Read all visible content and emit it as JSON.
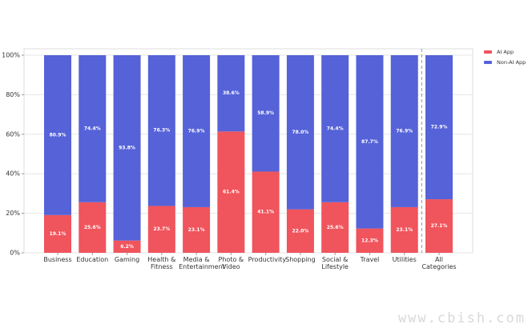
{
  "chart_data": {
    "type": "stacked_bar",
    "categories": [
      "Business",
      "Education",
      "Gaming",
      "Health & Fitness",
      "Media & Entertainment",
      "Photo & Video",
      "Productivity",
      "Shopping",
      "Social & Lifestyle",
      "Travel",
      "Utilities",
      "All Categories"
    ],
    "series": [
      {
        "name": "AI App",
        "color": "#f0545c",
        "values": [
          19.1,
          25.6,
          6.2,
          23.7,
          23.1,
          61.4,
          41.1,
          22.0,
          25.6,
          12.3,
          23.1,
          27.1
        ],
        "value_labels": [
          "19.1%",
          "25.6%",
          "6.2%",
          "23.7%",
          "23.1%",
          "61.4%",
          "41.1%",
          "22.0%",
          "25.6%",
          "12.3%",
          "23.1%",
          "27.1%"
        ]
      },
      {
        "name": "Non-AI App",
        "color": "#5562d8",
        "values": [
          80.9,
          74.4,
          93.8,
          76.3,
          76.9,
          38.6,
          58.9,
          78.0,
          74.4,
          87.7,
          76.9,
          72.9
        ],
        "value_labels": [
          "80.9%",
          "74.4%",
          "93.8%",
          "76.3%",
          "76.9%",
          "38.6%",
          "58.9%",
          "78.0%",
          "74.4%",
          "87.7%",
          "76.9%",
          "72.9%"
        ]
      }
    ],
    "ylim": [
      0,
      100
    ],
    "yticks": [
      {
        "value": 0,
        "label": "0%"
      },
      {
        "value": 20,
        "label": "20%"
      },
      {
        "value": 40,
        "label": "40%"
      },
      {
        "value": 60,
        "label": "60%"
      },
      {
        "value": 80,
        "label": "80%"
      },
      {
        "value": 100,
        "label": "100%"
      }
    ],
    "grid": true,
    "legend": "upper right"
  },
  "watermark": "www.cbish.com"
}
